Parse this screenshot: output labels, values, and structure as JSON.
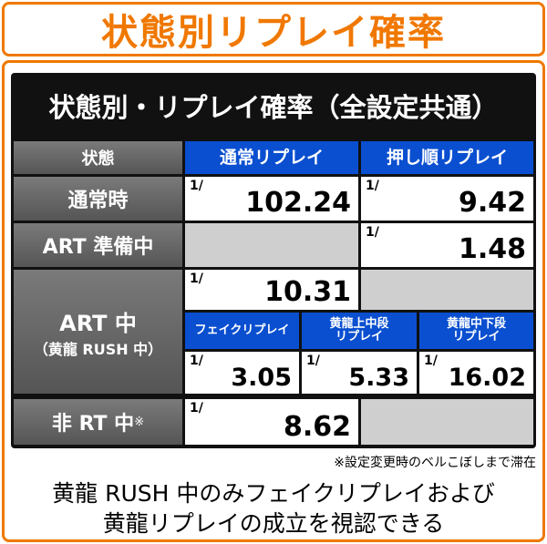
{
  "title": "状態別リプレイ確率",
  "table": {
    "title": "状態別・リプレイ確率（全設定共通）",
    "header": [
      "状態",
      "通常リプレイ",
      "押し順リプレイ"
    ],
    "prefix": "1/",
    "rows": [
      {
        "label": "通常時",
        "normal": "102.24",
        "push": "9.42"
      },
      {
        "label": "ART 準備中",
        "push": "1.48"
      },
      {
        "label": "ART 中",
        "sublabel": "（黄龍 RUSH 中）",
        "normal": "10.31",
        "subheaders": [
          [
            "フェイクリプレイ"
          ],
          [
            "黄龍上中段",
            "リプレイ"
          ],
          [
            "黄龍中下段",
            "リプレイ"
          ]
        ],
        "subvalues": [
          "3.05",
          "5.33",
          "16.02"
        ]
      },
      {
        "label": "非 RT 中",
        "mark": "※",
        "normal": "8.62"
      }
    ],
    "footnote": "※設定変更時のベルこぼしまで滞在"
  },
  "description": [
    "黄龍 RUSH 中のみフェイクリプレイおよび",
    "黄龍リプレイの成立を視認できる"
  ]
}
